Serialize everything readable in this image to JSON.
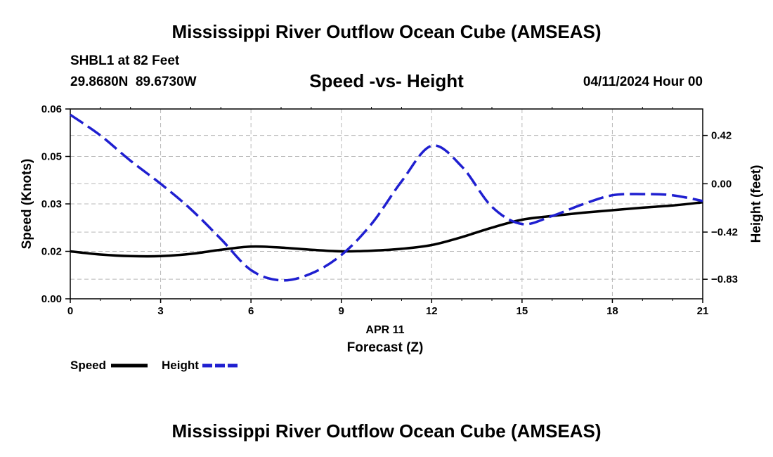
{
  "chart_data": {
    "type": "line",
    "title": "Mississippi River Outflow Ocean Cube (AMSEAS)",
    "subtitle": "Speed -vs- Height",
    "station": "SHBL1 at 82 Feet",
    "coords": "29.8680N  89.6730W",
    "date": "04/11/2024 Hour 00",
    "footer_title": "Mississippi River Outflow Ocean Cube (AMSEAS)",
    "xlabel_date": "APR 11",
    "xlabel": "Forecast (Z)",
    "ylabel_left": "Speed (Knots)",
    "ylabel_right": "Height (feet)",
    "xlim": [
      0,
      21
    ],
    "ylim_left": [
      0,
      0.06
    ],
    "ylim_right": [
      -1.0,
      0.65
    ],
    "xticks": [
      0,
      3,
      6,
      9,
      12,
      15,
      18,
      21
    ],
    "xtick_labels": [
      "0",
      "3",
      "6",
      "9",
      "12",
      "15",
      "18",
      "21"
    ],
    "yticks_left": [
      0.0,
      0.015,
      0.03,
      0.045,
      0.06
    ],
    "ytick_labels_left": [
      "0.00",
      "0.02",
      "0.03",
      "0.05",
      "0.06"
    ],
    "yticks_right": [
      -0.83,
      -0.42,
      0.0,
      0.42
    ],
    "ytick_labels_right": [
      "−0.83",
      "−0.42",
      "0.00",
      "0.42"
    ],
    "series": [
      {
        "name": "Speed",
        "axis": "left",
        "color": "#000000",
        "style": "solid",
        "x": [
          0,
          1,
          2,
          3,
          4,
          5,
          6,
          7,
          8,
          9,
          10,
          11,
          12,
          13,
          14,
          15,
          16,
          17,
          18,
          19,
          20,
          21
        ],
        "values": [
          0.015,
          0.014,
          0.0135,
          0.0135,
          0.0142,
          0.0155,
          0.0165,
          0.0162,
          0.0155,
          0.015,
          0.0152,
          0.0158,
          0.017,
          0.0195,
          0.0225,
          0.025,
          0.0262,
          0.0272,
          0.028,
          0.0288,
          0.0295,
          0.0305
        ]
      },
      {
        "name": "Height",
        "axis": "right",
        "color": "#1f1fd0",
        "style": "dashed",
        "x": [
          0,
          1,
          2,
          3,
          4,
          5,
          6,
          7,
          8,
          9,
          10,
          11,
          12,
          13,
          14,
          15,
          16,
          17,
          18,
          19,
          20,
          21
        ],
        "values": [
          0.6,
          0.42,
          0.2,
          0.0,
          -0.22,
          -0.48,
          -0.75,
          -0.84,
          -0.78,
          -0.62,
          -0.35,
          0.02,
          0.33,
          0.15,
          -0.2,
          -0.35,
          -0.28,
          -0.18,
          -0.1,
          -0.09,
          -0.1,
          -0.15
        ]
      }
    ]
  }
}
